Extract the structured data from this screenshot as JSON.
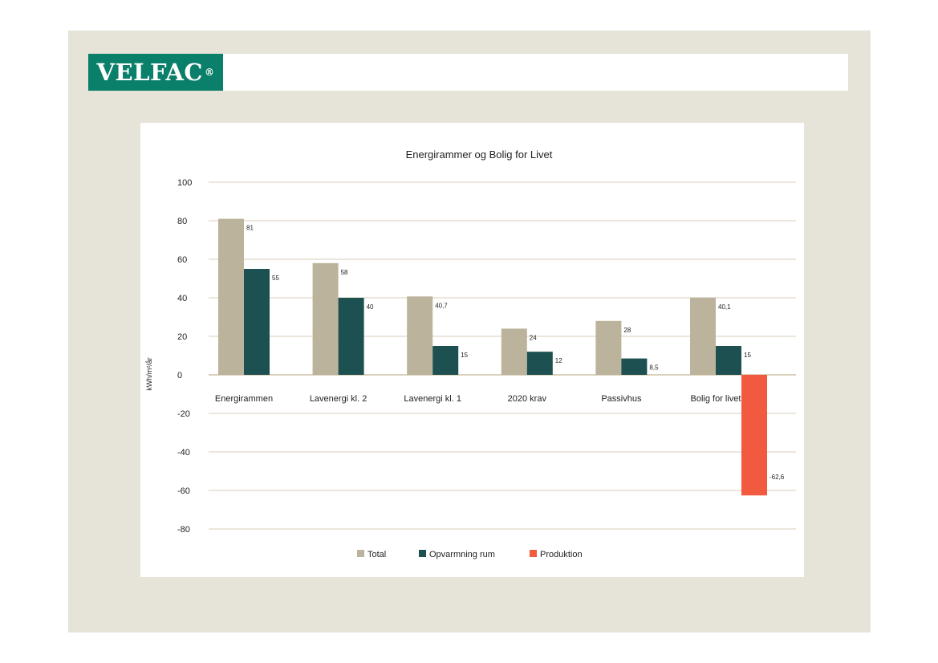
{
  "brand": {
    "logo_text": "VELFAC",
    "registered_mark": "®"
  },
  "colors": {
    "slide_background": "#e6e3d8",
    "logo_background": "#0a7f6a",
    "total": "#bbb39b",
    "opvarmning": "#1d5050",
    "produktion": "#f15a3e",
    "grid": "#d9ccb8"
  },
  "chart_data": {
    "type": "bar",
    "title": "Energirammer og Bolig for Livet",
    "ylabel": "kWh/m²/år",
    "xlabel": "",
    "ylim": [
      -80,
      100
    ],
    "yticks": [
      100,
      80,
      60,
      40,
      20,
      0,
      -20,
      -40,
      -60,
      -80
    ],
    "categories": [
      "Energirammen",
      "Lavenergi kl. 2",
      "Lavenergi kl. 1",
      "2020 krav",
      "Passivhus",
      "Bolig for livet"
    ],
    "series": [
      {
        "name": "Total",
        "color": "#bbb39b",
        "values": [
          81,
          58,
          40.7,
          24,
          28,
          40.1
        ],
        "labels": [
          "81",
          "58",
          "40,7",
          "24",
          "28",
          "40,1"
        ]
      },
      {
        "name": "Opvarmning rum",
        "color": "#1d5050",
        "values": [
          55,
          40,
          15,
          12,
          8.5,
          15
        ],
        "labels": [
          "55",
          "40",
          "15",
          "12",
          "8,5",
          "15"
        ]
      },
      {
        "name": "Produktion",
        "color": "#f15a3e",
        "values": [
          null,
          null,
          null,
          null,
          null,
          -62.6
        ],
        "labels": [
          "",
          "",
          "",
          "",
          "",
          "-62,6"
        ]
      }
    ],
    "legend_position": "bottom-center",
    "grid": true
  }
}
